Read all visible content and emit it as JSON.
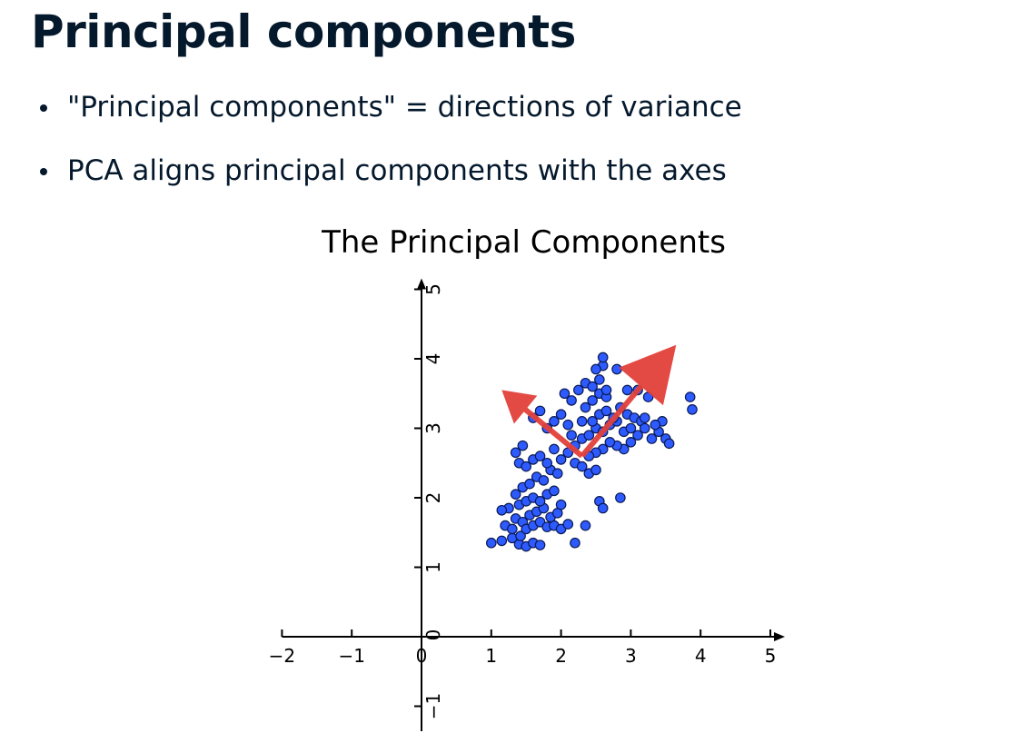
{
  "slide": {
    "title": "Principal components",
    "bullets": [
      "\"Principal components\" = directions of variance",
      "PCA aligns principal components with the axes"
    ]
  },
  "chart_data": {
    "type": "scatter",
    "title": "The Principal Components",
    "xlabel": "",
    "ylabel": "",
    "xlim": [
      -2,
      5
    ],
    "ylim": [
      -1.3,
      5
    ],
    "x_ticks": [
      "−2",
      "−1",
      "0",
      "1",
      "2",
      "3",
      "4",
      "5"
    ],
    "x_tick_values": [
      -2,
      -1,
      0,
      1,
      2,
      3,
      4,
      5
    ],
    "y_ticks": [
      "−1",
      "0",
      "1",
      "2",
      "3",
      "4",
      "5"
    ],
    "y_tick_values": [
      -1,
      0,
      1,
      2,
      3,
      4,
      5
    ],
    "grid": false,
    "colors": {
      "points": "#2e5bff",
      "point_edge": "#0b1a55",
      "arrows": "#e3403a",
      "axes": "#000000"
    },
    "points": [
      [
        1.0,
        1.35
      ],
      [
        1.15,
        1.38
      ],
      [
        1.3,
        1.42
      ],
      [
        1.4,
        1.33
      ],
      [
        1.5,
        1.3
      ],
      [
        1.6,
        1.35
      ],
      [
        1.7,
        1.32
      ],
      [
        1.42,
        1.45
      ],
      [
        1.2,
        1.6
      ],
      [
        1.3,
        1.55
      ],
      [
        1.35,
        1.7
      ],
      [
        1.45,
        1.65
      ],
      [
        1.5,
        1.55
      ],
      [
        1.6,
        1.6
      ],
      [
        1.7,
        1.65
      ],
      [
        1.8,
        1.58
      ],
      [
        1.9,
        1.6
      ],
      [
        2.0,
        1.55
      ],
      [
        2.1,
        1.62
      ],
      [
        1.55,
        1.75
      ],
      [
        1.65,
        1.8
      ],
      [
        1.75,
        1.85
      ],
      [
        1.85,
        1.72
      ],
      [
        1.95,
        1.78
      ],
      [
        1.25,
        1.85
      ],
      [
        1.4,
        1.9
      ],
      [
        1.5,
        1.95
      ],
      [
        1.6,
        2.0
      ],
      [
        1.7,
        1.95
      ],
      [
        1.8,
        2.05
      ],
      [
        1.9,
        2.1
      ],
      [
        2.0,
        1.9
      ],
      [
        1.15,
        1.82
      ],
      [
        1.35,
        2.05
      ],
      [
        1.45,
        2.15
      ],
      [
        1.55,
        2.2
      ],
      [
        1.65,
        2.3
      ],
      [
        1.75,
        2.25
      ],
      [
        1.85,
        2.4
      ],
      [
        1.95,
        2.35
      ],
      [
        1.4,
        2.5
      ],
      [
        1.5,
        2.45
      ],
      [
        1.6,
        2.55
      ],
      [
        1.7,
        2.6
      ],
      [
        1.8,
        2.5
      ],
      [
        1.35,
        2.65
      ],
      [
        1.45,
        2.75
      ],
      [
        1.9,
        2.7
      ],
      [
        2.0,
        2.55
      ],
      [
        2.1,
        2.65
      ],
      [
        2.2,
        2.5
      ],
      [
        2.3,
        2.45
      ],
      [
        2.4,
        2.35
      ],
      [
        2.5,
        2.4
      ],
      [
        2.2,
        2.75
      ],
      [
        2.3,
        2.85
      ],
      [
        2.4,
        2.9
      ],
      [
        2.5,
        3.0
      ],
      [
        2.6,
        2.95
      ],
      [
        2.7,
        3.05
      ],
      [
        2.8,
        3.1
      ],
      [
        2.9,
        2.95
      ],
      [
        3.0,
        3.0
      ],
      [
        3.1,
        2.9
      ],
      [
        2.45,
        3.1
      ],
      [
        2.55,
        3.2
      ],
      [
        2.65,
        3.25
      ],
      [
        2.75,
        3.15
      ],
      [
        2.85,
        3.3
      ],
      [
        2.95,
        3.2
      ],
      [
        3.05,
        3.15
      ],
      [
        3.15,
        3.1
      ],
      [
        2.35,
        3.3
      ],
      [
        2.45,
        3.4
      ],
      [
        2.55,
        3.5
      ],
      [
        2.65,
        3.45
      ],
      [
        2.25,
        3.55
      ],
      [
        2.35,
        3.65
      ],
      [
        2.45,
        3.6
      ],
      [
        2.55,
        3.7
      ],
      [
        2.65,
        3.55
      ],
      [
        2.15,
        3.4
      ],
      [
        2.05,
        3.5
      ],
      [
        2.0,
        3.2
      ],
      [
        1.9,
        3.1
      ],
      [
        1.8,
        3.0
      ],
      [
        1.7,
        3.25
      ],
      [
        1.6,
        3.15
      ],
      [
        2.6,
        3.9
      ],
      [
        2.5,
        3.85
      ],
      [
        2.8,
        3.85
      ],
      [
        2.6,
        4.02
      ],
      [
        3.2,
        3.0
      ],
      [
        3.3,
        2.85
      ],
      [
        3.4,
        2.95
      ],
      [
        3.5,
        2.85
      ],
      [
        3.55,
        2.78
      ],
      [
        3.45,
        3.1
      ],
      [
        3.2,
        3.15
      ],
      [
        3.35,
        3.05
      ],
      [
        3.0,
        2.8
      ],
      [
        2.9,
        2.7
      ],
      [
        2.8,
        2.75
      ],
      [
        2.7,
        2.8
      ],
      [
        2.6,
        2.7
      ],
      [
        2.5,
        2.65
      ],
      [
        2.4,
        2.6
      ],
      [
        2.55,
        1.95
      ],
      [
        2.6,
        1.85
      ],
      [
        2.85,
        2.0
      ],
      [
        2.35,
        1.6
      ],
      [
        2.2,
        1.35
      ],
      [
        3.85,
        3.45
      ],
      [
        3.88,
        3.27
      ],
      [
        2.95,
        3.55
      ],
      [
        3.1,
        3.55
      ],
      [
        3.25,
        3.45
      ],
      [
        2.1,
        3.05
      ],
      [
        2.15,
        2.9
      ],
      [
        2.3,
        3.1
      ]
    ],
    "arrows": [
      {
        "from": [
          2.3,
          2.6
        ],
        "to": [
          3.65,
          4.2
        ]
      },
      {
        "from": [
          2.3,
          2.6
        ],
        "to": [
          1.15,
          3.55
        ]
      }
    ]
  }
}
